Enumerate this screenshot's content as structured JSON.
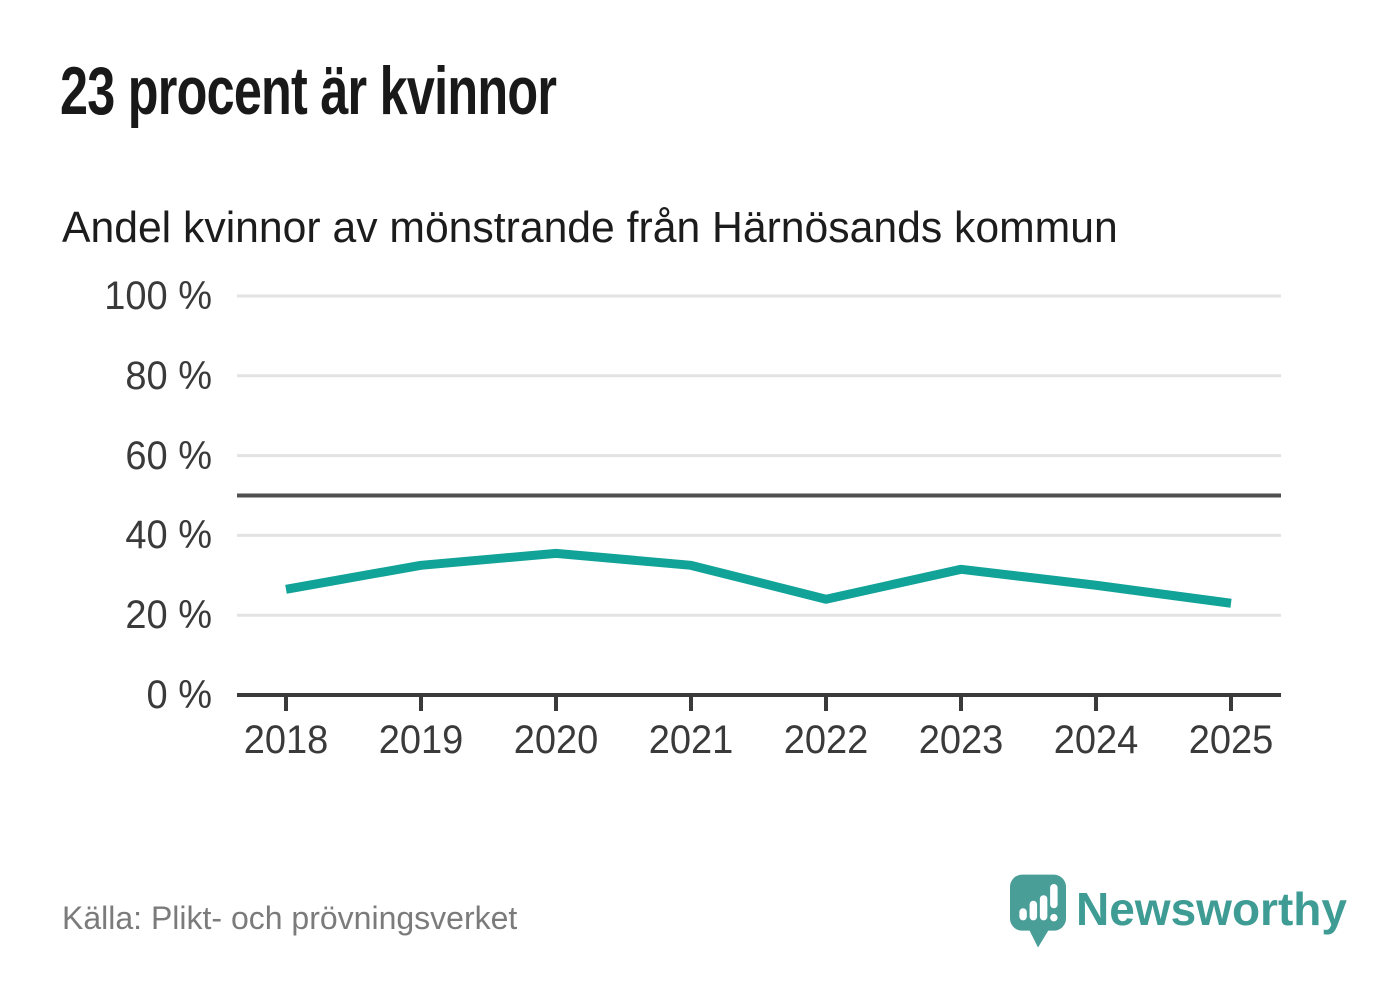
{
  "header": {
    "title": "23 procent är kvinnor",
    "subtitle": "Andel kvinnor av mönstrande från Härnösands kommun"
  },
  "chart_data": {
    "type": "line",
    "title": "23 procent är kvinnor",
    "subtitle": "Andel kvinnor av mönstrande från Härnösands kommun",
    "x": [
      2018,
      2019,
      2020,
      2021,
      2022,
      2023,
      2024,
      2025
    ],
    "xtick_labels": [
      "2018",
      "2019",
      "2020",
      "2021",
      "2022",
      "2023",
      "2024",
      "2025"
    ],
    "series": [
      {
        "name": "Andel kvinnor av mönstrande",
        "values": [
          26.5,
          32.5,
          35.5,
          32.5,
          24,
          31.5,
          27.5,
          23
        ]
      }
    ],
    "unit": "%",
    "xlabel": "",
    "ylabel": "",
    "ylim": [
      0,
      100
    ],
    "yticks": [
      0,
      20,
      40,
      60,
      80,
      100
    ],
    "ytick_labels": [
      "0 %",
      "20 %",
      "40 %",
      "60 %",
      "80 %",
      "100 %"
    ],
    "reference_line": 50,
    "grid": true,
    "legend": "none"
  },
  "footer": {
    "source": "Källa: Plikt- och prövningsverket",
    "brand": "Newsworthy"
  },
  "colors": {
    "line": "#12a398",
    "gridline": "#e3e3e3",
    "axis": "#3a3a3a",
    "reference_line": "#4f4f4f",
    "tick_label": "#3a3a3a",
    "title_text": "#191919",
    "source_text": "#7b7b7b",
    "brand_teal": "#3e9c95",
    "logo_teal": "#4a9e98"
  }
}
